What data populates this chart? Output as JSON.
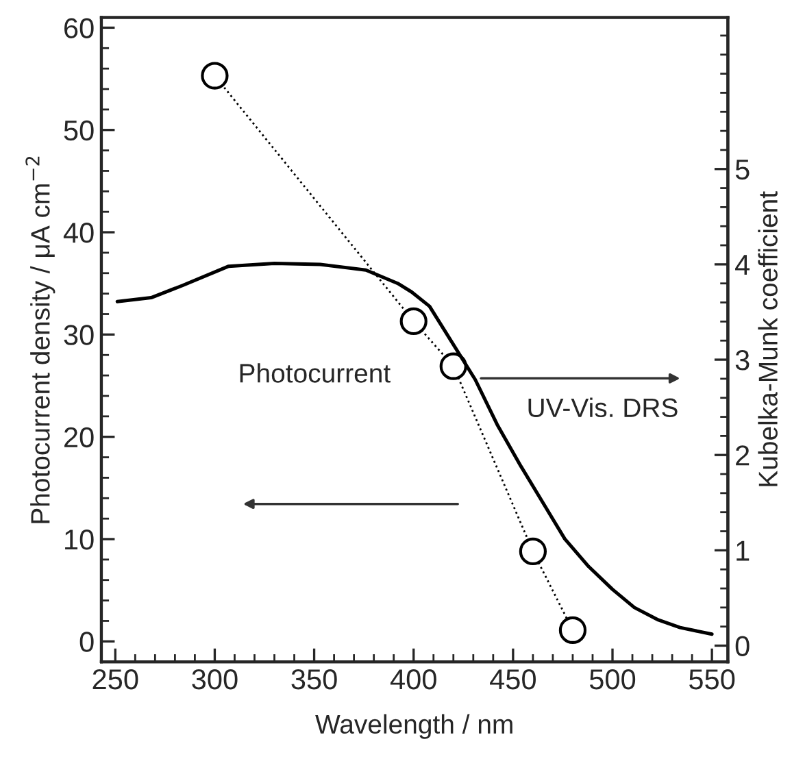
{
  "chart_data": {
    "type": "line",
    "xlabel": "Wavelength / nm",
    "ylabel": "Photocurrent density / μA cm$^{−2}$",
    "y2label": "Kubelka-Munk coefficient",
    "xlim": [
      243,
      558
    ],
    "xticks": [
      250,
      300,
      350,
      400,
      450,
      500,
      550
    ],
    "ylim": [
      -2,
      61
    ],
    "yticks": [
      0,
      10,
      20,
      30,
      40,
      50,
      60
    ],
    "y2lim": [
      -0.17,
      6.59
    ],
    "y2ticks": [
      0,
      1,
      2,
      3,
      4,
      5
    ],
    "grid": false,
    "legend": false,
    "series": [
      {
        "color": "#000000",
        "marker": "circle",
        "line_style": "dotted",
        "x": [
          300,
          400,
          420,
          460,
          480
        ],
        "values": [
          55.3,
          31.3,
          26.9,
          8.8,
          1.1
        ]
      },
      {
        "type": "line",
        "axis": "y2",
        "color": "#000000",
        "marker": "none",
        "line_style": "solid",
        "x": [
          251,
          268,
          284,
          307,
          330,
          353,
          376,
          392,
          399,
          408,
          431,
          442,
          454,
          465,
          476,
          488,
          500,
          511,
          523,
          534,
          550
        ],
        "values": [
          3.61,
          3.65,
          3.78,
          3.98,
          4.01,
          4.0,
          3.94,
          3.8,
          3.71,
          3.56,
          2.79,
          2.32,
          1.88,
          1.5,
          1.12,
          0.83,
          0.59,
          0.4,
          0.27,
          0.19,
          0.12
        ]
      }
    ],
    "annotations": [
      "Photocurrent",
      "UV-Vis. DRS"
    ]
  }
}
